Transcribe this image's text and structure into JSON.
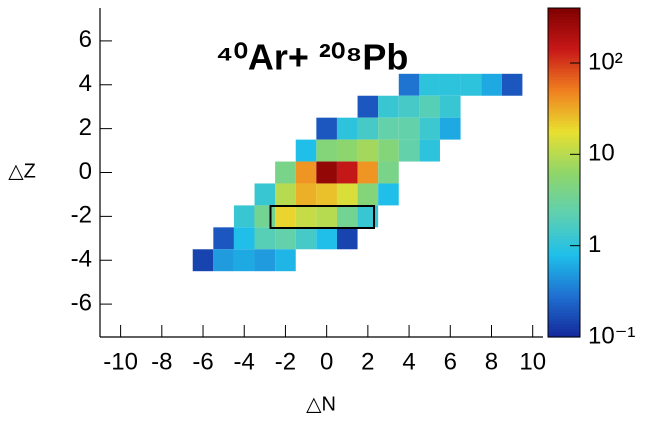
{
  "chart_data": {
    "type": "heatmap",
    "title": "⁴⁰Ar+ ²⁰⁸Pb",
    "xlabel": "△N",
    "ylabel": "△Z",
    "xlim": [
      -11,
      10.5
    ],
    "ylim": [
      -7.5,
      7.5
    ],
    "xticks": [
      -10,
      -8,
      -6,
      -4,
      -2,
      0,
      2,
      4,
      6,
      8,
      10
    ],
    "yticks": [
      -6,
      -4,
      -2,
      0,
      2,
      4,
      6
    ],
    "zlim": [
      0.1,
      400
    ],
    "zlog": true,
    "zticks": [
      {
        "value": 0.1,
        "label": "10⁻¹"
      },
      1,
      10,
      {
        "value": 100,
        "label": "10²"
      }
    ],
    "colormap": [
      "#14289a",
      "#1f6fd0",
      "#1fbfea",
      "#5ed0b0",
      "#8fd66a",
      "#e8e030",
      "#f08020",
      "#c81818",
      "#800000"
    ],
    "x": [
      4,
      5,
      6,
      7,
      8,
      9,
      2,
      3,
      4,
      5,
      6,
      0,
      1,
      2,
      3,
      4,
      5,
      6,
      -1,
      0,
      1,
      2,
      3,
      4,
      5,
      -2,
      -1,
      0,
      1,
      2,
      3,
      -3,
      -2,
      -1,
      0,
      1,
      2,
      3,
      -4,
      -3,
      -2,
      -1,
      0,
      1,
      2,
      -5,
      -4,
      -3,
      -2,
      -1,
      0,
      1,
      -6,
      -5,
      -4,
      -3,
      -2
    ],
    "y": [
      4,
      4,
      4,
      4,
      4,
      4,
      3,
      3,
      3,
      3,
      3,
      2,
      2,
      2,
      2,
      2,
      2,
      2,
      1,
      1,
      1,
      1,
      1,
      1,
      1,
      0,
      0,
      0,
      0,
      0,
      0,
      -1,
      -1,
      -1,
      -1,
      -1,
      -1,
      -1,
      -2,
      -2,
      -2,
      -2,
      -2,
      -2,
      -2,
      -3,
      -3,
      -3,
      -3,
      -3,
      -3,
      -3,
      -4,
      -4,
      -4,
      -4,
      -4
    ],
    "values": [
      0.3,
      1,
      1,
      1,
      0.6,
      0.2,
      0.2,
      1.2,
      1.5,
      2,
      1.2,
      0.2,
      1,
      1.5,
      2.5,
      2.5,
      1.3,
      0.6,
      0.8,
      5,
      6,
      8,
      5,
      2.5,
      1,
      4,
      40,
      300,
      150,
      40,
      4,
      1.2,
      10,
      30,
      25,
      15,
      5,
      0.8,
      1.2,
      3.5,
      20,
      12,
      10,
      3.5,
      1.2,
      0.2,
      0.8,
      2,
      2.5,
      1.5,
      0.8,
      0.15,
      0.15,
      0.5,
      0.6,
      0.5,
      0.7
    ]
  }
}
